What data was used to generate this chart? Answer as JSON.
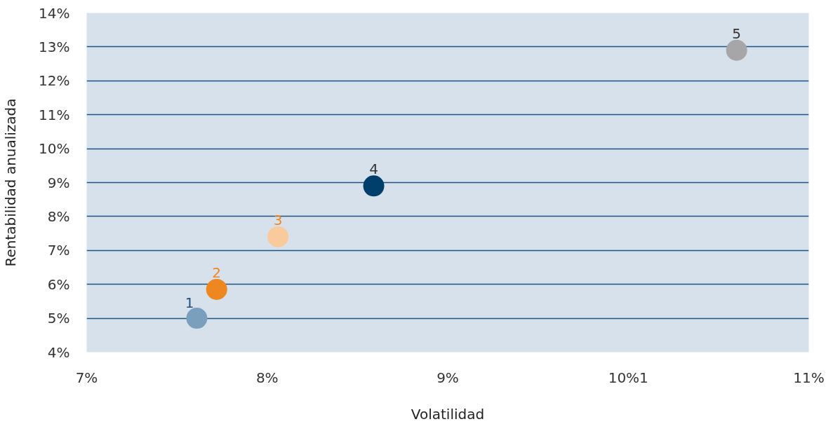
{
  "chart_data": {
    "type": "scatter",
    "xlabel": "Volatilidad",
    "ylabel": "Rentabilidad anualizada",
    "series": [
      {
        "name": "1",
        "color": "#7a9fbd",
        "x": [
          7.61
        ],
        "values": [
          5.0
        ]
      },
      {
        "name": "2",
        "color": "#ef8720",
        "x": [
          7.72
        ],
        "values": [
          5.85
        ]
      },
      {
        "name": "3",
        "color": "#f9cb9c",
        "x": [
          8.06
        ],
        "values": [
          7.4
        ]
      },
      {
        "name": "4",
        "color": "#003f6b",
        "x": [
          8.59
        ],
        "values": [
          8.9
        ]
      },
      {
        "name": "5",
        "color": "#a6a6a8",
        "x": [
          10.6
        ],
        "values": [
          12.9
        ]
      }
    ],
    "xlim": [
      7,
      11
    ],
    "ylim": [
      4,
      14
    ],
    "xticks": [
      {
        "value": 7,
        "label": "7%"
      },
      {
        "value": 8,
        "label": "8%"
      },
      {
        "value": 9,
        "label": "9%"
      },
      {
        "value": 10,
        "label": "10%1"
      },
      {
        "value": 11,
        "label": "11%"
      }
    ],
    "yticks": [
      {
        "value": 4,
        "label": "4%"
      },
      {
        "value": 5,
        "label": "5%"
      },
      {
        "value": 6,
        "label": "6%"
      },
      {
        "value": 7,
        "label": "7%"
      },
      {
        "value": 8,
        "label": "8%"
      },
      {
        "value": 9,
        "label": "9%"
      },
      {
        "value": 10,
        "label": "10%"
      },
      {
        "value": 11,
        "label": "11%"
      },
      {
        "value": 12,
        "label": "12%"
      },
      {
        "value": 13,
        "label": "13%"
      },
      {
        "value": 14,
        "label": "14%"
      }
    ],
    "grid": "y",
    "marker": "circle"
  }
}
